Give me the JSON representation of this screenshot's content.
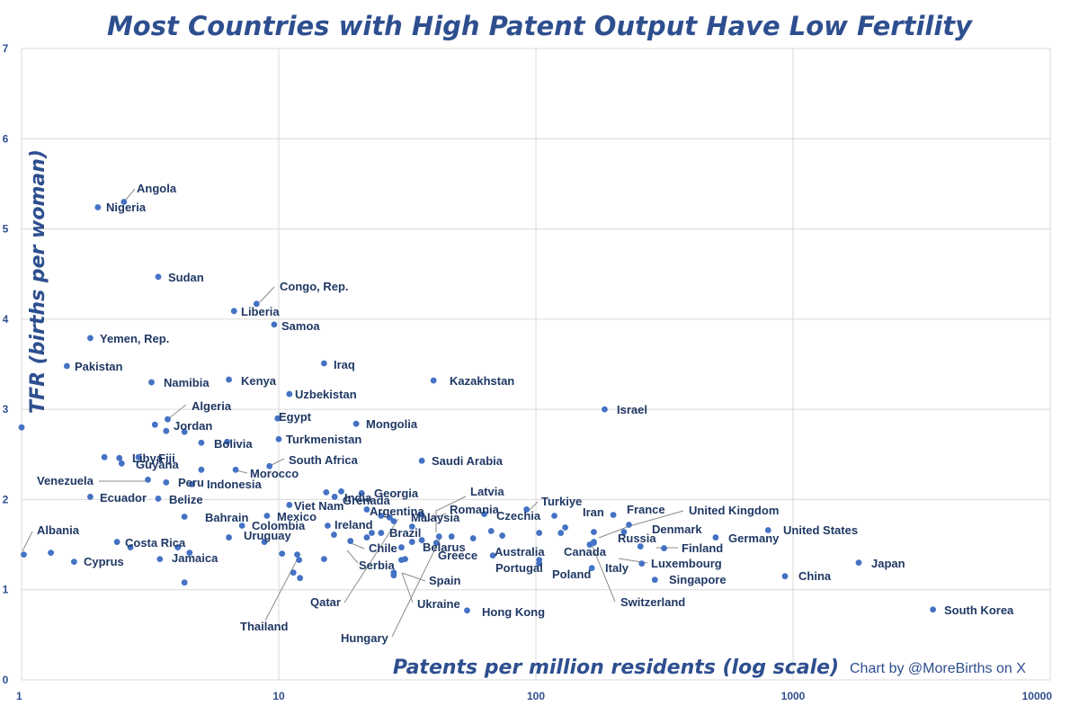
{
  "chart_data": {
    "type": "scatter",
    "title": "Most Countries with High Patent Output Have Low Fertility",
    "xlabel": "Patents per million residents (log scale)",
    "ylabel": "TFR (births per woman)",
    "credit": "Chart by @MoreBirths on X",
    "x_scale": "log",
    "xlim": [
      1,
      10000
    ],
    "ylim": [
      0,
      7
    ],
    "x_ticks": [
      "1",
      "10",
      "100",
      "1000",
      "10000"
    ],
    "y_ticks": [
      "0",
      "1",
      "2",
      "3",
      "4",
      "5",
      "6",
      "7"
    ],
    "grid": true,
    "marker_color": "#4472C4",
    "labeled_points": [
      {
        "name": "Angola",
        "x": 2.5,
        "y": 5.3
      },
      {
        "name": "Nigeria",
        "x": 1.98,
        "y": 5.24
      },
      {
        "name": "Sudan",
        "x": 3.4,
        "y": 4.47
      },
      {
        "name": "Congo, Rep.",
        "x": 8.2,
        "y": 4.17
      },
      {
        "name": "Liberia",
        "x": 6.7,
        "y": 4.09
      },
      {
        "name": "Samoa",
        "x": 9.6,
        "y": 3.94
      },
      {
        "name": "Yemen, Rep.",
        "x": 1.85,
        "y": 3.79
      },
      {
        "name": "Pakistan",
        "x": 1.5,
        "y": 3.48
      },
      {
        "name": "Iraq",
        "x": 15,
        "y": 3.51
      },
      {
        "name": "Kazakhstan",
        "x": 40,
        "y": 3.32
      },
      {
        "name": "Namibia",
        "x": 3.2,
        "y": 3.3
      },
      {
        "name": "Kenya",
        "x": 6.4,
        "y": 3.33
      },
      {
        "name": "Uzbekistan",
        "x": 11,
        "y": 3.17
      },
      {
        "name": "Israel",
        "x": 185,
        "y": 3.0
      },
      {
        "name": "Algeria",
        "x": 3.7,
        "y": 2.89
      },
      {
        "name": "Egypt",
        "x": 9.9,
        "y": 2.9
      },
      {
        "name": "Mongolia",
        "x": 20,
        "y": 2.84
      },
      {
        "name": "Jordan",
        "x": 3.3,
        "y": 2.83
      },
      {
        "name": "Bolivia",
        "x": 6.3,
        "y": 2.64
      },
      {
        "name": "Turkmenistan",
        "x": 10,
        "y": 2.67
      },
      {
        "name": "Saudi Arabia",
        "x": 36,
        "y": 2.43
      },
      {
        "name": "South Africa",
        "x": 9.2,
        "y": 2.37
      },
      {
        "name": "Libya",
        "x": 2.4,
        "y": 2.46
      },
      {
        "name": "Fiji",
        "x": 2.85,
        "y": 2.47
      },
      {
        "name": "Guyana",
        "x": 2.45,
        "y": 2.4
      },
      {
        "name": "Morocco",
        "x": 6.8,
        "y": 2.33
      },
      {
        "name": "Venezuela",
        "x": 3.1,
        "y": 2.22
      },
      {
        "name": "Peru",
        "x": 3.65,
        "y": 2.19
      },
      {
        "name": "Indonesia",
        "x": 4.6,
        "y": 2.17
      },
      {
        "name": "Georgia",
        "x": 21,
        "y": 2.07
      },
      {
        "name": "Latvia",
        "x": 42,
        "y": 1.59
      },
      {
        "name": "India",
        "x": 17.5,
        "y": 2.09
      },
      {
        "name": "Grenada",
        "x": 16.5,
        "y": 2.03
      },
      {
        "name": "Turkiye",
        "x": 92,
        "y": 1.89
      },
      {
        "name": "Ecuador",
        "x": 1.85,
        "y": 2.03
      },
      {
        "name": "Belize",
        "x": 3.4,
        "y": 2.01
      },
      {
        "name": "Viet Nam",
        "x": 11,
        "y": 1.94
      },
      {
        "name": "Argentina",
        "x": 22,
        "y": 1.89
      },
      {
        "name": "Romania",
        "x": 36,
        "y": 1.83
      },
      {
        "name": "Iran",
        "x": 118,
        "y": 1.82
      },
      {
        "name": "France",
        "x": 200,
        "y": 1.83
      },
      {
        "name": "United Kingdom",
        "x": 220,
        "y": 1.64
      },
      {
        "name": "Malaysia",
        "x": 25,
        "y": 1.82
      },
      {
        "name": "Czechia",
        "x": 63,
        "y": 1.84
      },
      {
        "name": "Bahrain",
        "x": 4.3,
        "y": 1.81
      },
      {
        "name": "Mexico",
        "x": 9,
        "y": 1.82
      },
      {
        "name": "Colombia",
        "x": 7.2,
        "y": 1.71
      },
      {
        "name": "Ireland",
        "x": 15.5,
        "y": 1.71
      },
      {
        "name": "Brazil",
        "x": 23,
        "y": 1.63
      },
      {
        "name": "Denmark",
        "x": 230,
        "y": 1.72
      },
      {
        "name": "United States",
        "x": 800,
        "y": 1.66
      },
      {
        "name": "Germany",
        "x": 500,
        "y": 1.58
      },
      {
        "name": "Albania",
        "x": 1.02,
        "y": 1.39
      },
      {
        "name": "Uruguay",
        "x": 6.4,
        "y": 1.58
      },
      {
        "name": "Canada",
        "x": 162,
        "y": 1.5
      },
      {
        "name": "Russia",
        "x": 168,
        "y": 1.53
      },
      {
        "name": "Finland",
        "x": 315,
        "y": 1.46
      },
      {
        "name": "Costa Rica",
        "x": 2.35,
        "y": 1.53
      },
      {
        "name": "Belarus",
        "x": 30,
        "y": 1.47
      },
      {
        "name": "Chile",
        "x": 19,
        "y": 1.54
      },
      {
        "name": "Australia",
        "x": 68,
        "y": 1.38
      },
      {
        "name": "Luxembourg",
        "x": 258,
        "y": 1.29
      },
      {
        "name": "Cyprus",
        "x": 1.6,
        "y": 1.31
      },
      {
        "name": "Jamaica",
        "x": 4.05,
        "y": 1.47
      },
      {
        "name": "Greece",
        "x": 31,
        "y": 1.34
      },
      {
        "name": "Serbia",
        "x": 15,
        "y": 1.34
      },
      {
        "name": "Portugal",
        "x": 103,
        "y": 1.33
      },
      {
        "name": "Poland",
        "x": 103,
        "y": 1.29
      },
      {
        "name": "Italy",
        "x": 165,
        "y": 1.24
      },
      {
        "name": "Singapore",
        "x": 290,
        "y": 1.11
      },
      {
        "name": "Japan",
        "x": 1800,
        "y": 1.3
      },
      {
        "name": "China",
        "x": 930,
        "y": 1.15
      },
      {
        "name": "Spain",
        "x": 28,
        "y": 1.19
      },
      {
        "name": "Switzerland",
        "x": 168,
        "y": 1.52
      },
      {
        "name": "Qatar",
        "x": 28,
        "y": 1.76
      },
      {
        "name": "Ukraine",
        "x": 28,
        "y": 1.16
      },
      {
        "name": "Thailand",
        "x": 12,
        "y": 1.33
      },
      {
        "name": "Hungary",
        "x": 33,
        "y": 1.53
      },
      {
        "name": "Hong Kong",
        "x": 54,
        "y": 0.77
      },
      {
        "name": "South Korea",
        "x": 3500,
        "y": 0.78
      }
    ],
    "unlabeled_points": [
      {
        "x": 1.0,
        "y": 2.8
      },
      {
        "x": 2.1,
        "y": 2.47
      },
      {
        "x": 3.65,
        "y": 2.76
      },
      {
        "x": 4.3,
        "y": 2.75
      },
      {
        "x": 5.0,
        "y": 2.63
      },
      {
        "x": 5.0,
        "y": 2.33
      },
      {
        "x": 2.65,
        "y": 1.47
      },
      {
        "x": 1.3,
        "y": 1.41
      },
      {
        "x": 3.45,
        "y": 1.34
      },
      {
        "x": 4.5,
        "y": 1.41
      },
      {
        "x": 4.3,
        "y": 1.08
      },
      {
        "x": 8.8,
        "y": 1.53
      },
      {
        "x": 10.3,
        "y": 1.4
      },
      {
        "x": 11.4,
        "y": 1.19
      },
      {
        "x": 11.8,
        "y": 1.39
      },
      {
        "x": 12.1,
        "y": 1.13
      },
      {
        "x": 15.3,
        "y": 2.08
      },
      {
        "x": 16.4,
        "y": 1.61
      },
      {
        "x": 22,
        "y": 1.58
      },
      {
        "x": 25,
        "y": 1.63
      },
      {
        "x": 27,
        "y": 1.8
      },
      {
        "x": 30,
        "y": 1.33
      },
      {
        "x": 33,
        "y": 1.7
      },
      {
        "x": 36,
        "y": 1.55
      },
      {
        "x": 41,
        "y": 1.52
      },
      {
        "x": 47,
        "y": 1.59
      },
      {
        "x": 57,
        "y": 1.57
      },
      {
        "x": 67,
        "y": 1.65
      },
      {
        "x": 74,
        "y": 1.6
      },
      {
        "x": 103,
        "y": 1.63
      },
      {
        "x": 125,
        "y": 1.63
      },
      {
        "x": 130,
        "y": 1.69
      },
      {
        "x": 168,
        "y": 1.64
      },
      {
        "x": 255,
        "y": 1.48
      }
    ]
  }
}
